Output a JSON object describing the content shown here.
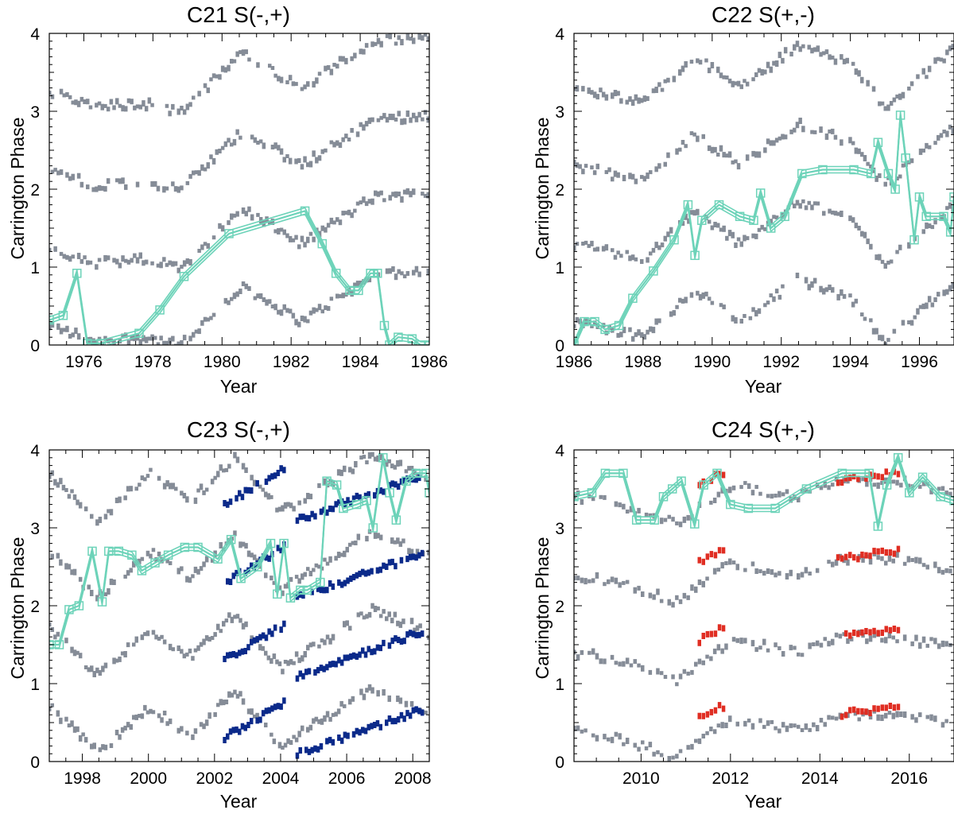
{
  "figure_title": "",
  "chart_data": [
    {
      "type": "scatter",
      "title": "C21 S(-,+)",
      "xlabel": "Year",
      "ylabel": "Carrington Phase",
      "xlim": [
        1975.0,
        1986.0
      ],
      "ylim": [
        0,
        4
      ],
      "xticks": [
        1976,
        1978,
        1980,
        1982,
        1984,
        1986
      ],
      "yticks": [
        0,
        1,
        2,
        3,
        4
      ],
      "background_series": {
        "name": "phase tracks",
        "color": "#858c97",
        "bands": [
          {
            "x": [
              1975.0,
              1976.3,
              1977.7,
              1978.8,
              1980.6,
              1982.3,
              1984.4,
              1986.0
            ],
            "y": [
              0.25,
              0.05,
              0.1,
              0.0,
              0.75,
              0.3,
              0.9,
              0.95
            ]
          },
          {
            "x": [
              1975.0,
              1976.3,
              1977.7,
              1978.8,
              1980.6,
              1982.3,
              1984.4,
              1986.0
            ],
            "y": [
              1.25,
              1.05,
              1.1,
              1.0,
              1.75,
              1.3,
              1.9,
              1.95
            ]
          },
          {
            "x": [
              1975.0,
              1976.3,
              1977.7,
              1978.8,
              1980.6,
              1982.3,
              1984.4,
              1986.0
            ],
            "y": [
              2.25,
              2.05,
              2.1,
              2.0,
              2.75,
              2.3,
              2.9,
              2.95
            ]
          },
          {
            "x": [
              1975.0,
              1976.3,
              1977.7,
              1978.8,
              1980.6,
              1982.3,
              1984.4,
              1986.0
            ],
            "y": [
              3.25,
              3.05,
              3.1,
              3.0,
              3.75,
              3.3,
              3.9,
              3.95
            ]
          }
        ]
      },
      "highlight_series": [],
      "trace": {
        "name": "fitted phase",
        "color": "#6dd3b9",
        "x": [
          1975.0,
          1975.4,
          1975.8,
          1976.1,
          1976.5,
          1977.6,
          1978.2,
          1978.9,
          1980.2,
          1982.4,
          1982.9,
          1983.3,
          1983.7,
          1983.95,
          1984.3,
          1984.5,
          1984.7,
          1984.85,
          1985.1,
          1985.5,
          1985.75,
          1986.0
        ],
        "y": [
          0.32,
          0.38,
          0.92,
          0.02,
          0.02,
          0.15,
          0.45,
          0.88,
          1.43,
          1.72,
          1.3,
          0.92,
          0.7,
          0.7,
          0.92,
          0.92,
          0.25,
          0.0,
          0.1,
          0.08,
          0.0,
          0.0
        ]
      }
    },
    {
      "type": "scatter",
      "title": "C22 S(+,-)",
      "xlabel": "Year",
      "ylabel": "Carrington Phase",
      "xlim": [
        1986.0,
        1997.0
      ],
      "ylim": [
        0,
        4
      ],
      "xticks": [
        1986,
        1988,
        1990,
        1992,
        1994,
        1996
      ],
      "yticks": [
        0,
        1,
        2,
        3,
        4
      ],
      "background_series": {
        "name": "phase tracks",
        "color": "#858c97",
        "bands": [
          {
            "x": [
              1986.0,
              1988.0,
              1989.5,
              1990.8,
              1992.5,
              1994.0,
              1995.0,
              1997.0
            ],
            "y": [
              0.3,
              0.1,
              0.7,
              0.3,
              0.85,
              0.6,
              0.05,
              0.8
            ]
          },
          {
            "x": [
              1986.0,
              1988.0,
              1989.5,
              1990.8,
              1992.5,
              1994.0,
              1995.0,
              1997.0
            ],
            "y": [
              1.3,
              1.1,
              1.7,
              1.3,
              1.85,
              1.6,
              1.05,
              1.8
            ]
          },
          {
            "x": [
              1986.0,
              1988.0,
              1989.5,
              1990.8,
              1992.5,
              1994.0,
              1995.0,
              1997.0
            ],
            "y": [
              2.3,
              2.1,
              2.7,
              2.3,
              2.85,
              2.6,
              2.05,
              2.8
            ]
          },
          {
            "x": [
              1986.0,
              1988.0,
              1989.5,
              1990.8,
              1992.5,
              1994.0,
              1995.0,
              1997.0
            ],
            "y": [
              3.3,
              3.1,
              3.7,
              3.3,
              3.85,
              3.6,
              3.05,
              3.8
            ]
          }
        ]
      },
      "highlight_series": [],
      "trace": {
        "name": "fitted phase",
        "color": "#6dd3b9",
        "x": [
          1986.0,
          1986.3,
          1986.6,
          1986.9,
          1987.3,
          1987.7,
          1988.3,
          1988.9,
          1989.3,
          1989.5,
          1989.7,
          1990.2,
          1990.8,
          1991.2,
          1991.4,
          1991.7,
          1992.1,
          1992.6,
          1993.2,
          1994.1,
          1994.6,
          1994.8,
          1995.1,
          1995.3,
          1995.45,
          1995.6,
          1995.85,
          1996.0,
          1996.2,
          1996.7,
          1996.9,
          1997.0
        ],
        "y": [
          0.0,
          0.3,
          0.3,
          0.2,
          0.25,
          0.6,
          0.95,
          1.35,
          1.8,
          1.15,
          1.6,
          1.8,
          1.65,
          1.6,
          1.95,
          1.5,
          1.65,
          2.2,
          2.25,
          2.25,
          2.2,
          2.6,
          2.2,
          2.0,
          2.95,
          2.4,
          1.35,
          1.9,
          1.65,
          1.65,
          1.45,
          1.9
        ]
      }
    },
    {
      "type": "scatter",
      "title": "C23 S(-,+)",
      "xlabel": "Year",
      "ylabel": "Carrington Phase",
      "xlim": [
        1997.0,
        2008.5
      ],
      "ylim": [
        0,
        4
      ],
      "xticks": [
        1998,
        2000,
        2002,
        2004,
        2006,
        2008
      ],
      "yticks": [
        0,
        1,
        2,
        3,
        4
      ],
      "background_series": {
        "name": "phase tracks",
        "color": "#858c97",
        "bands": [
          {
            "x": [
              1997.0,
              1998.5,
              2000.0,
              2001.3,
              2002.6,
              2004.0,
              2005.5,
              2006.8,
              2008.5
            ],
            "y": [
              0.7,
              0.1,
              0.7,
              0.35,
              0.9,
              0.2,
              0.6,
              0.95,
              0.65
            ]
          },
          {
            "x": [
              1997.0,
              1998.5,
              2000.0,
              2001.3,
              2002.6,
              2004.0,
              2005.5,
              2006.8,
              2008.5
            ],
            "y": [
              1.7,
              1.1,
              1.7,
              1.35,
              1.9,
              1.2,
              1.6,
              1.95,
              1.65
            ]
          },
          {
            "x": [
              1997.0,
              1998.5,
              2000.0,
              2001.3,
              2002.6,
              2004.0,
              2005.5,
              2006.8,
              2008.5
            ],
            "y": [
              2.7,
              2.1,
              2.7,
              2.35,
              2.9,
              2.2,
              2.6,
              2.95,
              2.65
            ]
          },
          {
            "x": [
              1997.0,
              1998.5,
              2000.0,
              2001.3,
              2002.6,
              2004.0,
              2005.5,
              2006.8,
              2008.5
            ],
            "y": [
              3.7,
              3.1,
              3.7,
              3.35,
              3.9,
              3.2,
              3.6,
              3.95,
              3.65
            ]
          }
        ]
      },
      "highlight_series": [
        {
          "name": "blue segment A",
          "color": "#0b2a8a",
          "x0": 2002.3,
          "x1": 2004.1,
          "y_starts": [
            0.3,
            1.3,
            2.3,
            3.3
          ],
          "slope": 0.25
        },
        {
          "name": "blue segment B",
          "color": "#0b2a8a",
          "x0": 2004.5,
          "x1": 2008.3,
          "y_starts": [
            0.1,
            1.1,
            2.1,
            3.1
          ],
          "slope": 0.15
        }
      ],
      "trace": {
        "name": "fitted phase",
        "color": "#6dd3b9",
        "x": [
          1997.0,
          1997.3,
          1997.6,
          1997.9,
          1998.3,
          1998.6,
          1998.8,
          1999.1,
          1999.5,
          1999.8,
          2000.2,
          2000.6,
          2001.1,
          2001.5,
          2002.1,
          2002.5,
          2002.8,
          2003.3,
          2003.7,
          2003.9,
          2004.1,
          2004.3,
          2004.6,
          2004.8,
          2005.2,
          2005.4,
          2005.7,
          2005.9,
          2006.3,
          2006.6,
          2006.8,
          2007.1,
          2007.3,
          2007.5,
          2007.8,
          2008.1,
          2008.4,
          2008.5
        ],
        "y": [
          1.5,
          1.5,
          1.95,
          2.0,
          2.7,
          2.05,
          2.7,
          2.7,
          2.65,
          2.45,
          2.55,
          2.65,
          2.75,
          2.75,
          2.6,
          2.85,
          2.35,
          2.5,
          2.8,
          2.15,
          2.8,
          2.1,
          2.2,
          2.2,
          2.3,
          3.6,
          3.55,
          3.25,
          3.3,
          3.35,
          3.0,
          3.9,
          3.45,
          3.1,
          3.6,
          3.7,
          3.7,
          3.45
        ]
      }
    },
    {
      "type": "scatter",
      "title": "C24 S(+,-)",
      "xlabel": "Year",
      "ylabel": "Carrington Phase",
      "xlim": [
        2008.5,
        2017.0
      ],
      "ylim": [
        0,
        4
      ],
      "xticks": [
        2010,
        2012,
        2014,
        2016
      ],
      "yticks": [
        0,
        1,
        2,
        3,
        4
      ],
      "background_series": {
        "name": "phase tracks",
        "color": "#858c97",
        "bands": [
          {
            "x": [
              2008.5,
              2009.5,
              2010.8,
              2012.0,
              2013.5,
              2014.5,
              2015.8,
              2017.0
            ],
            "y": [
              0.4,
              0.3,
              0.05,
              0.55,
              0.4,
              0.6,
              0.6,
              0.45
            ]
          },
          {
            "x": [
              2008.5,
              2009.5,
              2010.8,
              2012.0,
              2013.5,
              2014.5,
              2015.8,
              2017.0
            ],
            "y": [
              1.4,
              1.3,
              1.05,
              1.55,
              1.4,
              1.6,
              1.6,
              1.45
            ]
          },
          {
            "x": [
              2008.5,
              2009.5,
              2010.8,
              2012.0,
              2013.5,
              2014.5,
              2015.8,
              2017.0
            ],
            "y": [
              2.4,
              2.3,
              2.05,
              2.55,
              2.4,
              2.6,
              2.6,
              2.45
            ]
          },
          {
            "x": [
              2008.5,
              2009.5,
              2010.8,
              2012.0,
              2013.5,
              2014.5,
              2015.8,
              2017.0
            ],
            "y": [
              3.4,
              3.3,
              3.05,
              3.55,
              3.4,
              3.6,
              3.6,
              3.45
            ]
          }
        ]
      },
      "highlight_series": [
        {
          "name": "red segment A",
          "color": "#e02d22",
          "x0": 2011.3,
          "x1": 2011.9,
          "y_starts": [
            0.55,
            1.55,
            2.55,
            3.55
          ],
          "slope": 0.3
        },
        {
          "name": "red segment B",
          "color": "#e02d22",
          "x0": 2014.4,
          "x1": 2015.8,
          "y_starts": [
            0.6,
            1.6,
            2.6,
            3.6
          ],
          "slope": 0.08
        }
      ],
      "trace": {
        "name": "fitted phase",
        "color": "#6dd3b9",
        "x": [
          2008.5,
          2008.9,
          2009.2,
          2009.6,
          2009.9,
          2010.3,
          2010.5,
          2010.7,
          2010.9,
          2011.2,
          2011.4,
          2011.7,
          2012.0,
          2012.4,
          2013.0,
          2013.7,
          2014.5,
          2015.1,
          2015.3,
          2015.5,
          2015.75,
          2016.0,
          2016.3,
          2016.7,
          2017.0
        ],
        "y": [
          3.4,
          3.45,
          3.7,
          3.7,
          3.1,
          3.1,
          3.4,
          3.5,
          3.6,
          3.05,
          3.55,
          3.7,
          3.3,
          3.25,
          3.25,
          3.5,
          3.7,
          3.7,
          3.02,
          3.55,
          3.9,
          3.45,
          3.65,
          3.4,
          3.35
        ]
      }
    }
  ]
}
